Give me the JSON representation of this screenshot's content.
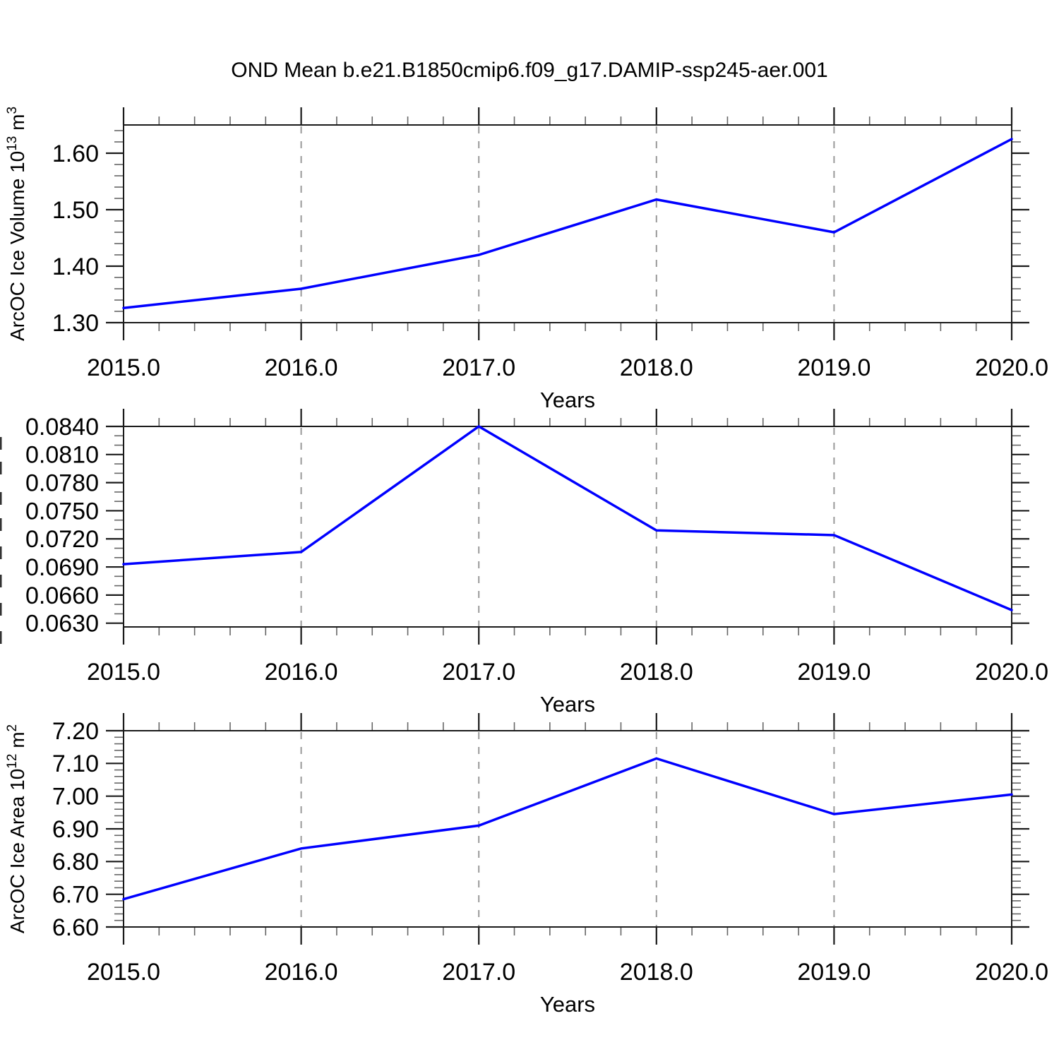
{
  "title": "OND Mean b.e21.B1850cmip6.f09_g17.DAMIP-ssp245-aer.001",
  "colors": {
    "line": "#0000ff",
    "grid": "#999999",
    "axis": "#1a1a1a",
    "minor_tick": "#666666",
    "background": "#ffffff"
  },
  "chart_data": [
    {
      "type": "line",
      "panel": 1,
      "ylabel": "ArcOC Ice Volume 10^13 m^3",
      "ylabel_rich": [
        {
          "t": "ArcOC Ice Volume 10"
        },
        {
          "t": "13",
          "sup": true
        },
        {
          "t": " m"
        },
        {
          "t": "3",
          "sup": true
        }
      ],
      "xlabel": "Years",
      "x": [
        2015,
        2016,
        2017,
        2018,
        2019,
        2020
      ],
      "x_ticklabels": [
        "2015.0",
        "2016.0",
        "2017.0",
        "2018.0",
        "2019.0",
        "2020.0"
      ],
      "values": [
        1.326,
        1.36,
        1.42,
        1.518,
        1.46,
        1.625
      ],
      "xlim": [
        2015,
        2020
      ],
      "ylim": [
        1.3,
        1.65
      ],
      "y_major_ticks": [
        1.3,
        1.4,
        1.5,
        1.6
      ],
      "y_ticklabels": [
        "1.30",
        "1.40",
        "1.50",
        "1.60"
      ],
      "y_minor_step": 0.02,
      "x_minor_step": 0.2,
      "gridlines_x": [
        2016,
        2017,
        2018,
        2019
      ],
      "grid_on": true,
      "legend": "none",
      "line_color": "#0000ff"
    },
    {
      "type": "line",
      "panel": 2,
      "ylabel": "",
      "ylabel_clipped": true,
      "xlabel": "Years",
      "x": [
        2015,
        2016,
        2017,
        2018,
        2019,
        2020
      ],
      "x_ticklabels": [
        "2015.0",
        "2016.0",
        "2017.0",
        "2018.0",
        "2019.0",
        "2020.0"
      ],
      "values": [
        0.0693,
        0.0706,
        0.084,
        0.0729,
        0.0724,
        0.0644
      ],
      "xlim": [
        2015,
        2020
      ],
      "ylim": [
        0.0626,
        0.084
      ],
      "y_major_ticks": [
        0.063,
        0.066,
        0.069,
        0.072,
        0.075,
        0.078,
        0.081,
        0.084
      ],
      "y_ticklabels": [
        "0.0630",
        "0.0660",
        "0.0690",
        "0.0720",
        "0.0750",
        "0.0780",
        "0.0810",
        "0.0840"
      ],
      "y_minor_step": 0.001,
      "x_minor_step": 0.2,
      "gridlines_x": [
        2016,
        2017,
        2018,
        2019
      ],
      "grid_on": true,
      "legend": "none",
      "line_color": "#0000ff"
    },
    {
      "type": "line",
      "panel": 3,
      "ylabel": "ArcOC Ice Area 10^12 m^2",
      "ylabel_rich": [
        {
          "t": "ArcOC Ice Area 10"
        },
        {
          "t": "12",
          "sup": true
        },
        {
          "t": " m"
        },
        {
          "t": "2",
          "sup": true
        }
      ],
      "xlabel": "Years",
      "x": [
        2015,
        2016,
        2017,
        2018,
        2019,
        2020
      ],
      "x_ticklabels": [
        "2015.0",
        "2016.0",
        "2017.0",
        "2018.0",
        "2019.0",
        "2020.0"
      ],
      "values": [
        6.685,
        6.84,
        6.91,
        7.115,
        6.945,
        7.005
      ],
      "xlim": [
        2015,
        2020
      ],
      "ylim": [
        6.6,
        7.2
      ],
      "y_major_ticks": [
        6.6,
        6.7,
        6.8,
        6.9,
        7.0,
        7.1,
        7.2
      ],
      "y_ticklabels": [
        "6.60",
        "6.70",
        "6.80",
        "6.90",
        "7.00",
        "7.10",
        "7.20"
      ],
      "y_minor_step": 0.02,
      "x_minor_step": 0.2,
      "gridlines_x": [
        2016,
        2017,
        2018,
        2019
      ],
      "grid_on": true,
      "legend": "none",
      "line_color": "#0000ff"
    }
  ]
}
